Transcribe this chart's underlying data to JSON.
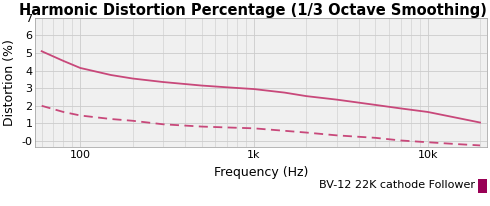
{
  "title": "Harmonic Distortion Percentage (1/3 Octave Smoothing)",
  "xlabel": "Frequency (Hz)",
  "ylabel": "Distortion (%)",
  "legend_label": "BV-12 22K cathode Follower",
  "line_color": "#c8487a",
  "legend_marker_color": "#990055",
  "xlim": [
    55,
    22000
  ],
  "ylim": [
    -0.35,
    7.0
  ],
  "yticks": [
    0,
    1,
    2,
    3,
    4,
    5,
    6,
    7
  ],
  "ytick_labels": [
    "-0",
    "1",
    "2",
    "3",
    "4",
    "5",
    "6",
    "7"
  ],
  "solid_x": [
    60,
    80,
    100,
    150,
    200,
    300,
    500,
    700,
    1000,
    1500,
    2000,
    3000,
    5000,
    7000,
    10000,
    15000,
    20000
  ],
  "solid_y": [
    5.1,
    4.55,
    4.15,
    3.75,
    3.55,
    3.35,
    3.15,
    3.05,
    2.95,
    2.75,
    2.55,
    2.35,
    2.05,
    1.85,
    1.65,
    1.3,
    1.05
  ],
  "dashed_x": [
    60,
    80,
    100,
    150,
    200,
    300,
    500,
    700,
    1000,
    1500,
    2000,
    3000,
    5000,
    7000,
    10000,
    15000,
    20000
  ],
  "dashed_y": [
    2.0,
    1.65,
    1.45,
    1.25,
    1.15,
    0.95,
    0.82,
    0.77,
    0.72,
    0.58,
    0.48,
    0.32,
    0.18,
    0.03,
    -0.07,
    -0.18,
    -0.25
  ],
  "grid_color": "#cccccc",
  "bg_color": "#f0f0f0",
  "title_fontsize": 10.5,
  "label_fontsize": 9,
  "tick_fontsize": 8,
  "legend_fontsize": 8
}
